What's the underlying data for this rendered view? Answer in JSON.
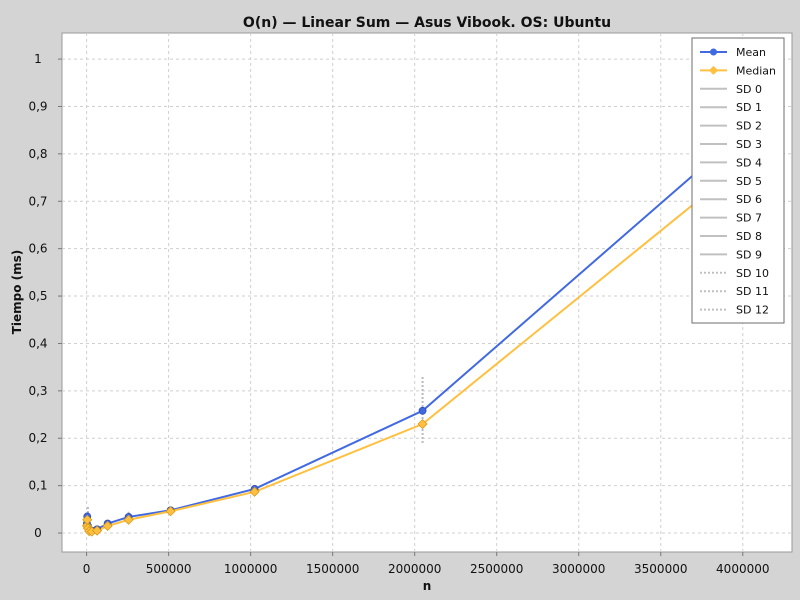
{
  "chart_data": {
    "type": "line",
    "title": "O(n) — Linear Sum — Asus Vibook. OS: Ubuntu",
    "xlabel": "n",
    "ylabel": "Tiempo (ms)",
    "xlim": [
      -150000,
      4300000
    ],
    "ylim": [
      -0.04,
      1.055
    ],
    "xticks": [
      0,
      500000,
      1000000,
      1500000,
      2000000,
      2500000,
      3000000,
      3500000,
      4000000
    ],
    "xtick_labels": [
      "0",
      "500000",
      "1000000",
      "1500000",
      "2000000",
      "2500000",
      "3000000",
      "3500000",
      "4000000"
    ],
    "yticks": [
      0,
      0.1,
      0.2,
      0.3,
      0.4,
      0.5,
      0.6,
      0.7,
      0.8,
      0.9,
      1
    ],
    "ytick_labels": [
      "0",
      "0,1",
      "0,2",
      "0,3",
      "0,4",
      "0,5",
      "0,6",
      "0,7",
      "0,8",
      "0,9",
      "1"
    ],
    "grid": true,
    "legend_position": "top-right",
    "series": [
      {
        "name": "Mean",
        "color": "#4169e1",
        "marker": "circle",
        "x": [
          2000,
          4000,
          8000,
          16000,
          32000,
          64000,
          128000,
          256000,
          512000,
          1024000,
          2048000,
          4096000
        ],
        "y": [
          0.02,
          0.035,
          0.015,
          0.006,
          0.005,
          0.008,
          0.02,
          0.034,
          0.048,
          0.093,
          0.258,
          0.875
        ]
      },
      {
        "name": "Median",
        "color": "#ffc040",
        "marker": "diamond",
        "x": [
          2000,
          4000,
          8000,
          16000,
          32000,
          64000,
          128000,
          256000,
          512000,
          1024000,
          2048000,
          4096000
        ],
        "y": [
          0.015,
          0.028,
          0.01,
          0.004,
          0.003,
          0.005,
          0.015,
          0.028,
          0.046,
          0.087,
          0.23,
          0.805
        ]
      }
    ],
    "error_bars": [
      {
        "x": 8000,
        "low": 0.0,
        "high": 0.055
      },
      {
        "x": 256000,
        "low": 0.025,
        "high": 0.045
      },
      {
        "x": 2048000,
        "low": 0.19,
        "high": 0.33
      }
    ],
    "legend_entries": [
      {
        "label": "Mean",
        "color": "#4169e1",
        "marker": "circle",
        "style": "solid"
      },
      {
        "label": "Median",
        "color": "#ffc040",
        "marker": "diamond",
        "style": "solid"
      },
      {
        "label": "SD 0",
        "color": "#c0c0c0",
        "style": "solid"
      },
      {
        "label": "SD 1",
        "color": "#c0c0c0",
        "style": "solid"
      },
      {
        "label": "SD 2",
        "color": "#c0c0c0",
        "style": "solid"
      },
      {
        "label": "SD 3",
        "color": "#c0c0c0",
        "style": "solid"
      },
      {
        "label": "SD 4",
        "color": "#c0c0c0",
        "style": "solid"
      },
      {
        "label": "SD 5",
        "color": "#c0c0c0",
        "style": "solid"
      },
      {
        "label": "SD 6",
        "color": "#c0c0c0",
        "style": "solid"
      },
      {
        "label": "SD 7",
        "color": "#c0c0c0",
        "style": "solid"
      },
      {
        "label": "SD 8",
        "color": "#c0c0c0",
        "style": "solid"
      },
      {
        "label": "SD 9",
        "color": "#c0c0c0",
        "style": "solid"
      },
      {
        "label": "SD 10",
        "color": "#c0c0c0",
        "style": "dashed"
      },
      {
        "label": "SD 11",
        "color": "#c0c0c0",
        "style": "dashed"
      },
      {
        "label": "SD 12",
        "color": "#c0c0c0",
        "style": "dashed"
      }
    ]
  }
}
